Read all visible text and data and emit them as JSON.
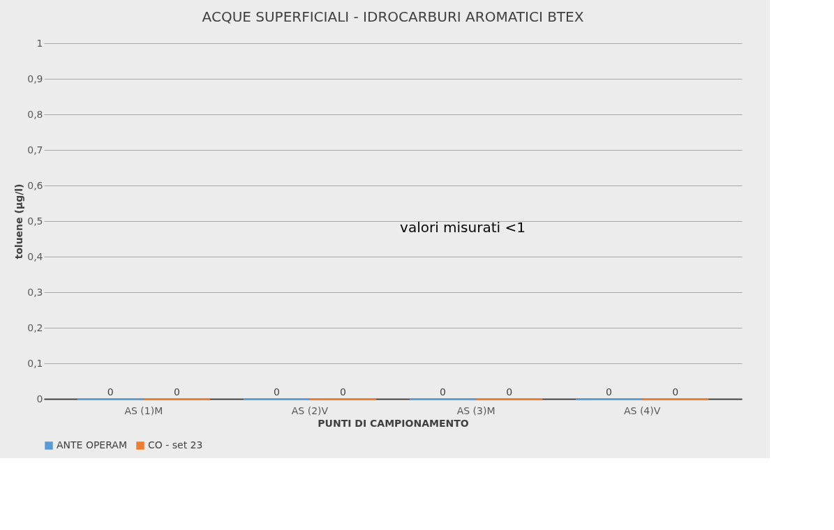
{
  "chart_data": {
    "type": "bar",
    "title": "ACQUE SUPERFICIALI - IDROCARBURI AROMATICI BTEX",
    "xlabel": "PUNTI DI CAMPIONAMENTO",
    "ylabel": "toluene  (µg/l)",
    "categories": [
      "AS (1)M",
      "AS (2)V",
      "AS (3)M",
      "AS (4)V"
    ],
    "series": [
      {
        "name": "ANTE OPERAM",
        "color": "#5b9bd5",
        "values": [
          0,
          0,
          0,
          0
        ]
      },
      {
        "name": "CO - set 23",
        "color": "#ed7d31",
        "values": [
          0,
          0,
          0,
          0
        ]
      }
    ],
    "ylim": [
      0,
      1
    ],
    "yticks": [
      0,
      {
        "value": 0.1,
        "label": "0,1"
      },
      {
        "value": 0.2,
        "label": "0,2"
      },
      {
        "value": 0.3,
        "label": "0,3"
      },
      {
        "value": 0.4,
        "label": "0,4"
      },
      {
        "value": 0.5,
        "label": "0,5"
      },
      {
        "value": 0.6,
        "label": "0,6"
      },
      {
        "value": 0.7,
        "label": "0,7"
      },
      {
        "value": 0.8,
        "label": "0,8"
      },
      {
        "value": 0.9,
        "label": "0,9"
      },
      1
    ],
    "annotations": [
      "valori misurati <1"
    ],
    "data_labels": true,
    "grid": "y",
    "legend": "bottom"
  }
}
